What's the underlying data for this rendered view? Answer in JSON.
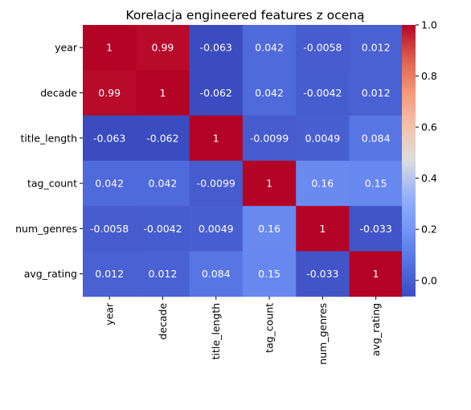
{
  "chart_data": {
    "type": "heatmap",
    "title": "Korelacja engineered features z oceną",
    "xlabel": "",
    "ylabel": "",
    "x_categories": [
      "year",
      "decade",
      "title_length",
      "tag_count",
      "num_genres",
      "avg_rating"
    ],
    "y_categories": [
      "year",
      "decade",
      "title_length",
      "tag_count",
      "num_genres",
      "avg_rating"
    ],
    "values": [
      [
        1,
        0.99,
        -0.063,
        0.042,
        -0.0058,
        0.012
      ],
      [
        0.99,
        1,
        -0.062,
        0.042,
        -0.0042,
        0.012
      ],
      [
        -0.063,
        -0.062,
        1,
        -0.0099,
        0.0049,
        0.084
      ],
      [
        0.042,
        0.042,
        -0.0099,
        1,
        0.16,
        0.15
      ],
      [
        -0.0058,
        -0.0042,
        0.0049,
        0.16,
        1,
        -0.033
      ],
      [
        0.012,
        0.012,
        0.084,
        0.15,
        -0.033,
        1
      ]
    ],
    "cell_labels": [
      [
        "1",
        "0.99",
        "-0.063",
        "0.042",
        "-0.0058",
        "0.012"
      ],
      [
        "0.99",
        "1",
        "-0.062",
        "0.042",
        "-0.0042",
        "0.012"
      ],
      [
        "-0.063",
        "-0.062",
        "1",
        "-0.0099",
        "0.0049",
        "0.084"
      ],
      [
        "0.042",
        "0.042",
        "-0.0099",
        "1",
        "0.16",
        "0.15"
      ],
      [
        "-0.0058",
        "-0.0042",
        "0.0049",
        "0.16",
        "1",
        "-0.033"
      ],
      [
        "0.012",
        "0.012",
        "0.084",
        "0.15",
        "-0.033",
        "1"
      ]
    ],
    "colormap": "coolwarm",
    "color_range": [
      -0.063,
      1.0
    ],
    "colorbar": {
      "ticks": [
        0.0,
        0.2,
        0.4,
        0.6,
        0.8,
        1.0
      ],
      "tick_labels": [
        "0.0",
        "0.2",
        "0.4",
        "0.6",
        "0.8",
        "1.0"
      ]
    }
  }
}
